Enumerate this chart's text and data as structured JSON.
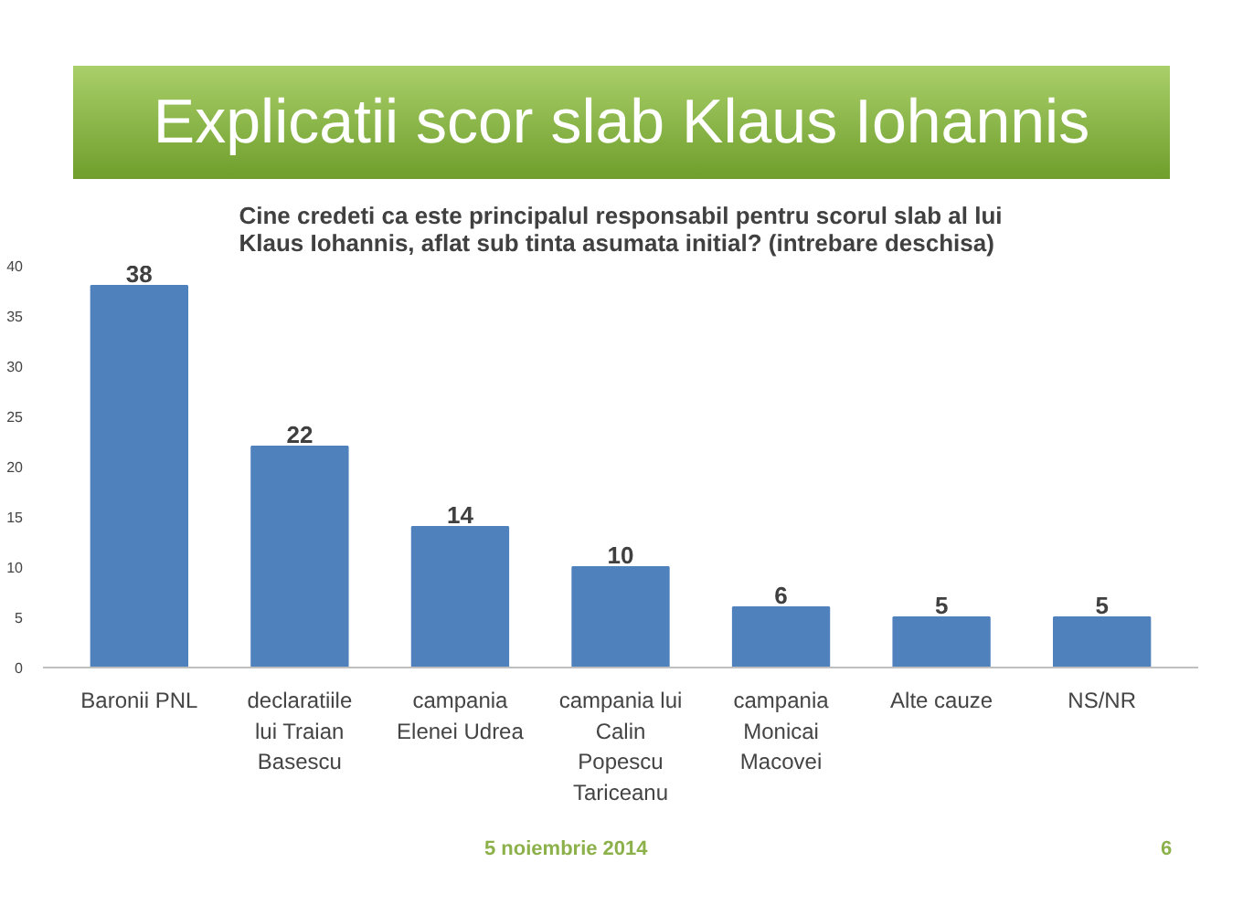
{
  "chart_data": {
    "type": "bar",
    "title": "Explicatii scor slab Klaus Iohannis",
    "subtitle": "Cine credeti ca este principalul responsabil pentru scorul slab al lui\nKlaus Iohannis, aflat sub tinta asumata initial? (intrebare deschisa)",
    "categories": [
      "Baronii PNL",
      "declaratiile\nlui Traian\nBasescu",
      "campania\nElenei Udrea",
      "campania lui\nCalin\nPopescu\nTariceanu",
      "campania\nMonicai\nMacovei",
      "Alte cauze",
      "NS/NR"
    ],
    "values": [
      38,
      22,
      14,
      10,
      6,
      5,
      5
    ],
    "color": "#4f81bd",
    "ylim": [
      0,
      40
    ],
    "yticks": [
      0,
      5,
      10,
      15,
      20,
      25,
      30,
      35,
      40
    ],
    "data_labels": true,
    "grid": false,
    "annotations": [
      "5 noiembrie 2014",
      "6"
    ]
  }
}
